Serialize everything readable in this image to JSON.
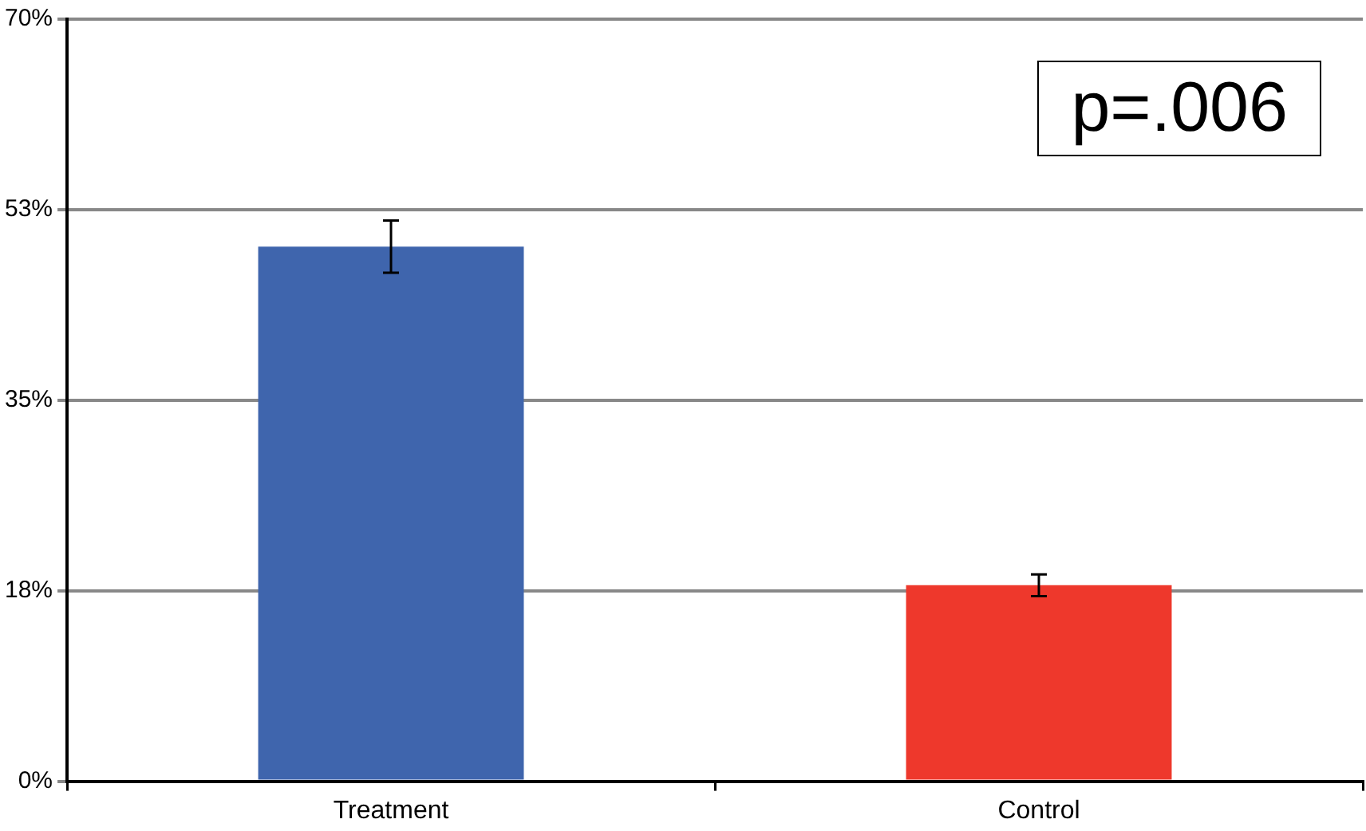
{
  "chart_data": {
    "type": "bar",
    "categories": [
      "Treatment",
      "Control"
    ],
    "values": [
      49.1,
      18.0
    ],
    "colors": [
      "#3f65ad",
      "#ee382c"
    ],
    "errors": [
      2.4,
      1.0
    ],
    "ylim": [
      0,
      70
    ],
    "yticks": [
      {
        "value": 0,
        "label": "0%"
      },
      {
        "value": 17.5,
        "label": "18%"
      },
      {
        "value": 35,
        "label": "35%"
      },
      {
        "value": 52.5,
        "label": "53%"
      },
      {
        "value": 70,
        "label": "70%"
      }
    ],
    "grid": "y",
    "legend": false,
    "annotations": [
      "p=.006"
    ]
  }
}
